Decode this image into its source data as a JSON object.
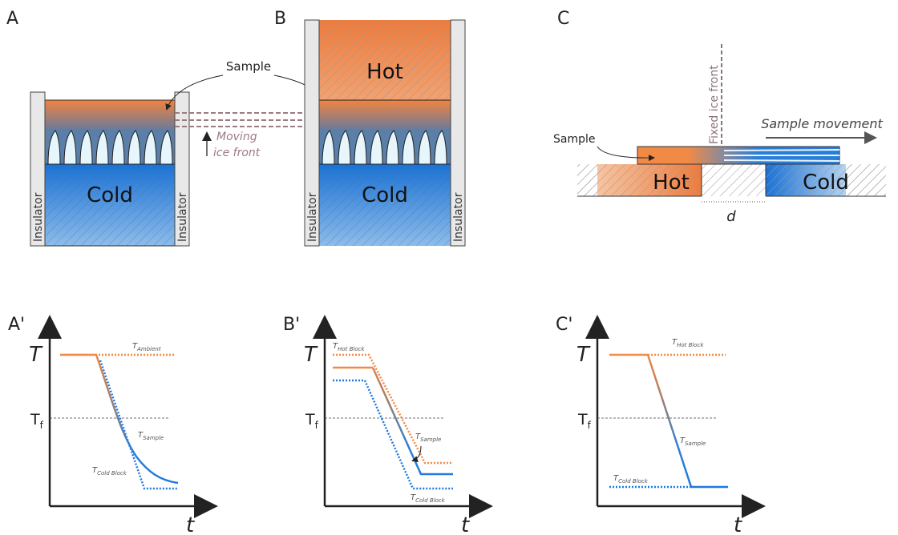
{
  "panels": {
    "a": {
      "label": "A",
      "cold": "Cold",
      "insulator_left": "Insulator",
      "insulator_right": "Insulator",
      "moving_ice_front": [
        "Moving",
        "ice front"
      ]
    },
    "sample": "Sample",
    "b": {
      "label": "B",
      "hot": "Hot",
      "cold": "Cold",
      "insulator_left": "Insulator",
      "insulator_right": "Insulator"
    },
    "c": {
      "label": "C",
      "hot": "Hot",
      "cold": "Cold",
      "sample": "Sample",
      "fixed_ice_front": "Fixed ice front",
      "sample_movement": "Sample movement",
      "distance": "d"
    }
  },
  "plots": [
    {
      "label": "A'",
      "y_axis": "T",
      "x_axis": "t",
      "freezing": {
        "main": "T",
        "sub": "f"
      },
      "annotations": [
        {
          "main": "T",
          "sub": "Ambient"
        },
        {
          "main": "T",
          "sub": "Sample"
        },
        {
          "main": "T",
          "sub": "Cold Block"
        }
      ]
    },
    {
      "label": "B'",
      "y_axis": "T",
      "x_axis": "t",
      "freezing": {
        "main": "T",
        "sub": "f"
      },
      "annotations": [
        {
          "main": "T",
          "sub": "Hot Block"
        },
        {
          "main": "T",
          "sub": "Sample"
        },
        {
          "main": "T",
          "sub": "Cold Block"
        }
      ]
    },
    {
      "label": "C'",
      "y_axis": "T",
      "x_axis": "t",
      "freezing": {
        "main": "T",
        "sub": "f"
      },
      "annotations": [
        {
          "main": "T",
          "sub": "Hot Block"
        },
        {
          "main": "T",
          "sub": "Sample"
        },
        {
          "main": "T",
          "sub": "Cold Block"
        }
      ]
    }
  ]
}
